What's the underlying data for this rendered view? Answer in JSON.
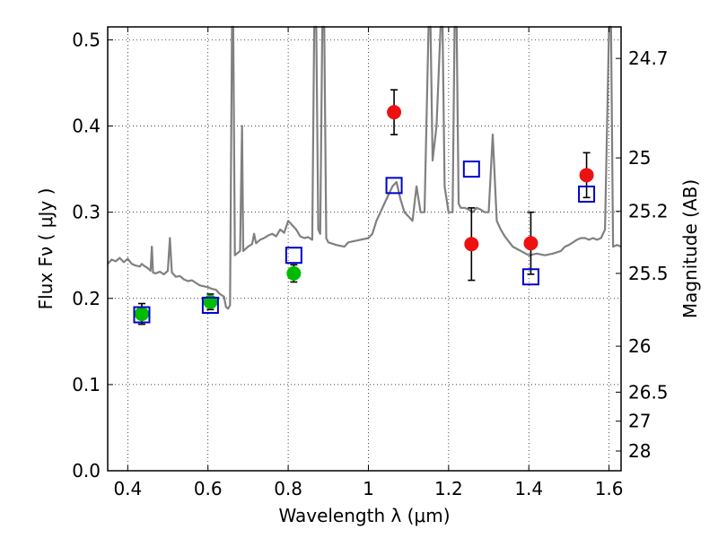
{
  "chart_data": {
    "type": "scatter",
    "xlabel": "Wavelength  λ (μm)",
    "ylabel": "Flux  Fν  ( μJy )",
    "ylabel_right": "Magnitude (AB)",
    "xlim": [
      0.35,
      1.63
    ],
    "ylim": [
      0.0,
      0.515
    ],
    "grid": true,
    "x_ticks": [
      0.4,
      0.6,
      0.8,
      1.0,
      1.2,
      1.4,
      1.6
    ],
    "x_tick_labels": [
      "0.4",
      "0.6",
      "0.8",
      "1",
      "1.2",
      "1.4",
      "1.6"
    ],
    "y_ticks": [
      0.0,
      0.1,
      0.2,
      0.3,
      0.4,
      0.5
    ],
    "y_tick_labels": [
      "0.0",
      "0.1",
      "0.2",
      "0.3",
      "0.4",
      "0.5"
    ],
    "right_ticks": [
      {
        "flux": 0.4784,
        "label": "24.7"
      },
      {
        "flux": 0.363,
        "label": "25"
      },
      {
        "flux": 0.301,
        "label": "25.2"
      },
      {
        "flux": 0.229,
        "label": "25.5"
      },
      {
        "flux": 0.1445,
        "label": "26"
      },
      {
        "flux": 0.0912,
        "label": "26.5"
      },
      {
        "flux": 0.0575,
        "label": "27"
      },
      {
        "flux": 0.0229,
        "label": "28"
      }
    ],
    "series": [
      {
        "marker": "circle",
        "color": "#00bb00",
        "points": [
          {
            "x": 0.435,
            "y": 0.182,
            "err": 0.012
          },
          {
            "x": 0.606,
            "y": 0.196,
            "err": 0.009
          },
          {
            "x": 0.814,
            "y": 0.229,
            "err": 0.01
          }
        ]
      },
      {
        "marker": "circle",
        "color": "#ee1111",
        "points": [
          {
            "x": 1.064,
            "y": 0.416,
            "err": 0.026
          },
          {
            "x": 1.257,
            "y": 0.263,
            "err": 0.042
          },
          {
            "x": 1.405,
            "y": 0.264,
            "err": 0.036
          },
          {
            "x": 1.544,
            "y": 0.343,
            "err": 0.026
          }
        ]
      },
      {
        "marker": "open-square",
        "color": "#0000cc",
        "points": [
          {
            "x": 0.435,
            "y": 0.181
          },
          {
            "x": 0.606,
            "y": 0.192
          },
          {
            "x": 0.814,
            "y": 0.25
          },
          {
            "x": 1.064,
            "y": 0.331
          },
          {
            "x": 1.257,
            "y": 0.35
          },
          {
            "x": 1.405,
            "y": 0.225
          },
          {
            "x": 1.544,
            "y": 0.321
          }
        ]
      },
      {
        "type": "line",
        "color": "#808080",
        "points": [
          [
            0.35,
            0.24
          ],
          [
            0.36,
            0.245
          ],
          [
            0.37,
            0.243
          ],
          [
            0.38,
            0.247
          ],
          [
            0.39,
            0.242
          ],
          [
            0.4,
            0.246
          ],
          [
            0.41,
            0.24
          ],
          [
            0.42,
            0.238
          ],
          [
            0.43,
            0.237
          ],
          [
            0.435,
            0.24
          ],
          [
            0.44,
            0.238
          ],
          [
            0.45,
            0.235
          ],
          [
            0.457,
            0.232
          ],
          [
            0.46,
            0.26
          ],
          [
            0.463,
            0.23
          ],
          [
            0.47,
            0.229
          ],
          [
            0.48,
            0.231
          ],
          [
            0.49,
            0.228
          ],
          [
            0.5,
            0.232
          ],
          [
            0.505,
            0.27
          ],
          [
            0.51,
            0.23
          ],
          [
            0.52,
            0.225
          ],
          [
            0.53,
            0.226
          ],
          [
            0.54,
            0.222
          ],
          [
            0.55,
            0.22
          ],
          [
            0.56,
            0.221
          ],
          [
            0.57,
            0.218
          ],
          [
            0.58,
            0.215
          ],
          [
            0.59,
            0.214
          ],
          [
            0.6,
            0.213
          ],
          [
            0.61,
            0.211
          ],
          [
            0.62,
            0.21
          ],
          [
            0.63,
            0.205
          ],
          [
            0.64,
            0.202
          ],
          [
            0.645,
            0.19
          ],
          [
            0.65,
            0.188
          ],
          [
            0.655,
            0.192
          ],
          [
            0.66,
            0.515
          ],
          [
            0.663,
            0.515
          ],
          [
            0.667,
            0.25
          ],
          [
            0.675,
            0.253
          ],
          [
            0.68,
            0.255
          ],
          [
            0.685,
            0.4
          ],
          [
            0.688,
            0.255
          ],
          [
            0.7,
            0.26
          ],
          [
            0.71,
            0.263
          ],
          [
            0.715,
            0.275
          ],
          [
            0.72,
            0.264
          ],
          [
            0.73,
            0.268
          ],
          [
            0.74,
            0.27
          ],
          [
            0.75,
            0.273
          ],
          [
            0.76,
            0.275
          ],
          [
            0.77,
            0.272
          ],
          [
            0.78,
            0.28
          ],
          [
            0.79,
            0.276
          ],
          [
            0.8,
            0.29
          ],
          [
            0.81,
            0.285
          ],
          [
            0.82,
            0.28
          ],
          [
            0.83,
            0.272
          ],
          [
            0.84,
            0.27
          ],
          [
            0.85,
            0.271
          ],
          [
            0.86,
            0.268
          ],
          [
            0.865,
            0.515
          ],
          [
            0.87,
            0.515
          ],
          [
            0.875,
            0.28
          ],
          [
            0.88,
            0.275
          ],
          [
            0.885,
            0.515
          ],
          [
            0.89,
            0.515
          ],
          [
            0.895,
            0.27
          ],
          [
            0.9,
            0.265
          ],
          [
            0.92,
            0.262
          ],
          [
            0.94,
            0.26
          ],
          [
            0.95,
            0.265
          ],
          [
            0.96,
            0.266
          ],
          [
            0.98,
            0.268
          ],
          [
            1.0,
            0.27
          ],
          [
            1.01,
            0.275
          ],
          [
            1.02,
            0.29
          ],
          [
            1.03,
            0.3
          ],
          [
            1.04,
            0.31
          ],
          [
            1.05,
            0.32
          ],
          [
            1.06,
            0.33
          ],
          [
            1.07,
            0.335
          ],
          [
            1.08,
            0.315
          ],
          [
            1.09,
            0.3
          ],
          [
            1.1,
            0.295
          ],
          [
            1.11,
            0.29
          ],
          [
            1.12,
            0.33
          ],
          [
            1.13,
            0.3
          ],
          [
            1.14,
            0.3
          ],
          [
            1.15,
            0.515
          ],
          [
            1.155,
            0.515
          ],
          [
            1.16,
            0.36
          ],
          [
            1.17,
            0.4
          ],
          [
            1.18,
            0.515
          ],
          [
            1.185,
            0.515
          ],
          [
            1.19,
            0.33
          ],
          [
            1.2,
            0.3
          ],
          [
            1.21,
            0.3
          ],
          [
            1.215,
            0.515
          ],
          [
            1.22,
            0.515
          ],
          [
            1.225,
            0.31
          ],
          [
            1.23,
            0.305
          ],
          [
            1.24,
            0.305
          ],
          [
            1.25,
            0.303
          ],
          [
            1.26,
            0.3
          ],
          [
            1.27,
            0.305
          ],
          [
            1.28,
            0.303
          ],
          [
            1.29,
            0.3
          ],
          [
            1.3,
            0.3
          ],
          [
            1.31,
            0.39
          ],
          [
            1.32,
            0.29
          ],
          [
            1.33,
            0.28
          ],
          [
            1.34,
            0.272
          ],
          [
            1.36,
            0.26
          ],
          [
            1.38,
            0.255
          ],
          [
            1.4,
            0.25
          ],
          [
            1.42,
            0.252
          ],
          [
            1.44,
            0.25
          ],
          [
            1.46,
            0.252
          ],
          [
            1.48,
            0.255
          ],
          [
            1.49,
            0.26
          ],
          [
            1.5,
            0.262
          ],
          [
            1.51,
            0.265
          ],
          [
            1.52,
            0.268
          ],
          [
            1.53,
            0.27
          ],
          [
            1.54,
            0.27
          ],
          [
            1.55,
            0.268
          ],
          [
            1.56,
            0.27
          ],
          [
            1.57,
            0.268
          ],
          [
            1.58,
            0.27
          ],
          [
            1.59,
            0.28
          ],
          [
            1.6,
            0.515
          ],
          [
            1.605,
            0.515
          ],
          [
            1.61,
            0.26
          ],
          [
            1.62,
            0.262
          ],
          [
            1.63,
            0.26
          ]
        ]
      }
    ]
  }
}
